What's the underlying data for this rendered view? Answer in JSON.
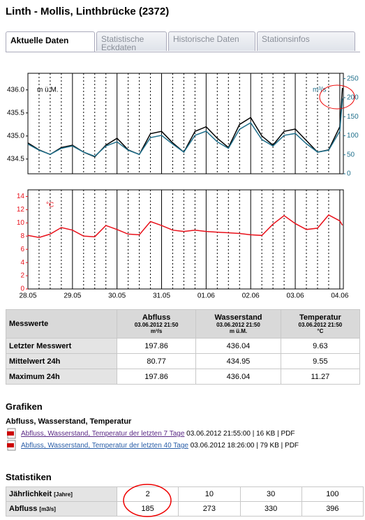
{
  "header": {
    "title": "Linth - Mollis, Linthbrücke (2372)"
  },
  "tabs": [
    "Aktuelle Daten",
    "Statistische Eckdaten",
    "Historische Daten",
    "Stationsinfos"
  ],
  "chart_data": [
    {
      "type": "line",
      "y_label": "m ü.M.",
      "y2_label": "m³/s",
      "x": [
        0,
        0.25,
        0.5,
        0.75,
        1,
        1.25,
        1.5,
        1.75,
        2,
        2.25,
        2.5,
        2.75,
        3,
        3.25,
        3.5,
        3.75,
        4,
        4.25,
        4.5,
        4.75,
        5,
        5.25,
        5.5,
        5.75,
        6,
        6.25,
        6.5,
        6.75,
        7,
        7.06
      ],
      "xlim": [
        0,
        7.08
      ],
      "xticks": [
        0,
        1,
        2,
        3,
        4,
        5,
        6,
        7
      ],
      "ylim": [
        434.18,
        436.36
      ],
      "yticks": [
        434.5,
        {
          "value": 435.0,
          "label": "435.0"
        },
        435.5,
        {
          "value": 436.0,
          "label": "436.0"
        }
      ],
      "y2lim": [
        0,
        264
      ],
      "y2ticks": [
        0,
        50,
        100,
        150,
        200,
        250
      ],
      "series": [
        {
          "name": "Wasserstand",
          "color": "#000000",
          "values": [
            434.85,
            434.7,
            434.6,
            434.75,
            434.8,
            434.65,
            434.55,
            434.8,
            434.95,
            434.7,
            434.6,
            435.05,
            435.1,
            434.85,
            434.65,
            435.1,
            435.2,
            434.95,
            434.75,
            435.25,
            435.4,
            435.0,
            434.8,
            435.1,
            435.15,
            434.9,
            434.65,
            434.7,
            435.2,
            436.04
          ]
        },
        {
          "name": "Abfluss",
          "color": "#1f6f8b",
          "axis": "y2",
          "values": [
            78,
            62,
            51,
            67,
            73,
            57,
            46,
            73,
            84,
            62,
            51,
            95,
            101,
            78,
            57,
            101,
            112,
            84,
            67,
            117,
            134,
            90,
            73,
            101,
            106,
            79,
            57,
            62,
            112,
            197.86
          ]
        }
      ]
    },
    {
      "type": "line",
      "y_label": "°C",
      "x": [
        0,
        0.25,
        0.5,
        0.75,
        1,
        1.25,
        1.5,
        1.75,
        2,
        2.25,
        2.5,
        2.75,
        3,
        3.25,
        3.5,
        3.75,
        4,
        4.25,
        4.5,
        4.75,
        5,
        5.25,
        5.5,
        5.75,
        6,
        6.25,
        6.5,
        6.75,
        7,
        7.06
      ],
      "xlim": [
        0,
        7.08
      ],
      "xticks": [
        {
          "value": 0,
          "label": "28.05"
        },
        {
          "value": 1,
          "label": "29.05"
        },
        {
          "value": 2,
          "label": "30.05"
        },
        {
          "value": 3,
          "label": "31.05"
        },
        {
          "value": 4,
          "label": "01.06"
        },
        {
          "value": 5,
          "label": "02.06"
        },
        {
          "value": 6,
          "label": "03.06"
        },
        {
          "value": 7,
          "label": "04.06"
        }
      ],
      "ylim": [
        0,
        15
      ],
      "yticks": [
        0,
        2,
        4,
        6,
        8,
        10,
        12,
        14
      ],
      "series": [
        {
          "name": "Temperatur",
          "color": "#e8101a",
          "values": [
            8.1,
            7.8,
            8.3,
            9.3,
            8.9,
            8.0,
            7.9,
            9.6,
            9.0,
            8.3,
            8.2,
            10.2,
            9.6,
            8.9,
            8.7,
            8.9,
            8.7,
            8.6,
            8.5,
            8.4,
            8.2,
            8.1,
            9.8,
            11.1,
            9.9,
            9.0,
            9.2,
            11.2,
            10.3,
            9.63
          ]
        }
      ]
    }
  ],
  "table": {
    "corner": "Messwerte",
    "columns": [
      {
        "name": "Abfluss",
        "date": "03.06.2012 21:50",
        "unit": "m³/s"
      },
      {
        "name": "Wasserstand",
        "date": "03.06.2012 21:50",
        "unit": "m ü.M."
      },
      {
        "name": "Temperatur",
        "date": "03.06.2012 21:50",
        "unit": "°C"
      }
    ],
    "rows": [
      [
        "Letzter Messwert",
        197.86,
        436.04,
        9.63
      ],
      [
        "Mittelwert 24h",
        80.77,
        434.95,
        9.55
      ],
      [
        "Maximum 24h",
        197.86,
        436.04,
        11.27
      ]
    ]
  },
  "grafiken": {
    "title": "Grafiken",
    "subtitle": "Abfluss, Wasserstand, Temperatur",
    "links": [
      {
        "text": "Abfluss, Wasserstand, Temperatur der letzten 7 Tage",
        "meta": "03.06.2012 21:55:00 | 16 KB | PDF"
      },
      {
        "text": "Abfluss, Wasserstand, Temperatur der letzten 40 Tage",
        "meta": "03.06.2012 18:26:00 | 79 KB | PDF"
      }
    ]
  },
  "statistiken": {
    "title": "Statistiken",
    "rows": [
      {
        "label": "Jährlichkeit",
        "unit": "[Jahre]",
        "values": [
          2,
          10,
          30,
          100
        ]
      },
      {
        "label": "Abfluss",
        "unit": "[m3/s]",
        "values": [
          185,
          273,
          330,
          396
        ]
      }
    ]
  }
}
